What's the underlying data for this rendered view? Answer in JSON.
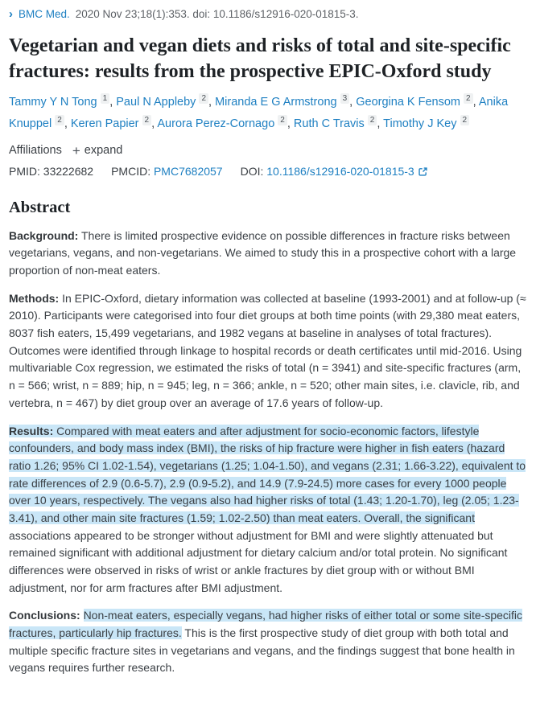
{
  "header": {
    "journal": "BMC Med.",
    "citation": "2020 Nov 23;18(1):353. doi: 10.1186/s12916-020-01815-3.",
    "title": "Vegetarian and vegan diets and risks of total and site-specific fractures: results from the prospective EPIC-Oxford study",
    "authors": [
      {
        "name": "Tammy Y N Tong",
        "sup": "1"
      },
      {
        "name": "Paul N Appleby",
        "sup": "2"
      },
      {
        "name": "Miranda E G Armstrong",
        "sup": "3"
      },
      {
        "name": "Georgina K Fensom",
        "sup": "2"
      },
      {
        "name": "Anika Knuppel",
        "sup": "2"
      },
      {
        "name": "Keren Papier",
        "sup": "2"
      },
      {
        "name": "Aurora Perez-Cornago",
        "sup": "2"
      },
      {
        "name": "Ruth C Travis",
        "sup": "2"
      },
      {
        "name": "Timothy J Key",
        "sup": "2"
      }
    ],
    "affiliations_label": "Affiliations",
    "expand_label": "expand",
    "ids": {
      "pmid_label": "PMID:",
      "pmid": "33222682",
      "pmcid_label": "PMCID:",
      "pmcid": "PMC7682057",
      "doi_label": "DOI:",
      "doi": "10.1186/s12916-020-01815-3"
    }
  },
  "abstract": {
    "heading": "Abstract",
    "background": {
      "label": "Background:",
      "text": "There is limited prospective evidence on possible differences in fracture risks between vegetarians, vegans, and non-vegetarians. We aimed to study this in a prospective cohort with a large proportion of non-meat eaters."
    },
    "methods": {
      "label": "Methods:",
      "text": "In EPIC-Oxford, dietary information was collected at baseline (1993-2001) and at follow-up (≈ 2010). Participants were categorised into four diet groups at both time points (with 29,380 meat eaters, 8037 fish eaters, 15,499 vegetarians, and 1982 vegans at baseline in analyses of total fractures). Outcomes were identified through linkage to hospital records or death certificates until mid-2016. Using multivariable Cox regression, we estimated the risks of total (n = 3941) and site-specific fractures (arm, n = 566; wrist, n = 889; hip, n = 945; leg, n = 366; ankle, n = 520; other main sites, i.e. clavicle, rib, and vertebra, n = 467) by diet group over an average of 17.6 years of follow-up."
    },
    "results": {
      "label": "Results:",
      "highlighted": "Compared with meat eaters and after adjustment for socio-economic factors, lifestyle confounders, and body mass index (BMI), the risks of hip fracture were higher in fish eaters (hazard ratio 1.26; 95% CI 1.02-1.54), vegetarians (1.25; 1.04-1.50), and vegans (2.31; 1.66-3.22), equivalent to rate differences of 2.9 (0.6-5.7), 2.9 (0.9-5.2), and 14.9 (7.9-24.5) more cases for every 1000 people over 10 years, respectively. The vegans also had higher risks of total (1.43; 1.20-1.70), leg (2.05; 1.23-3.41), and other main site fractures (1.59; 1.02-2.50) than meat eaters. Overall, the significant",
      "rest": " associations appeared to be stronger without adjustment for BMI and were slightly attenuated but remained significant with additional adjustment for dietary calcium and/or total protein. No significant differences were observed in risks of wrist or ankle fractures by diet group with or without BMI adjustment, nor for arm fractures after BMI adjustment."
    },
    "conclusions": {
      "label": "Conclusions:",
      "highlighted": "Non-meat eaters, especially vegans, had higher risks of either total or some site-specific fractures, particularly hip fractures.",
      "rest": " This is the first prospective study of diet group with both total and multiple specific fracture sites in vegetarians and vegans, and the findings suggest that bone health in vegans requires further research."
    }
  },
  "colors": {
    "link_blue": "#1f80c2",
    "highlight_blue": "#c9e6f7",
    "superscript_bg": "#eff1f2"
  }
}
